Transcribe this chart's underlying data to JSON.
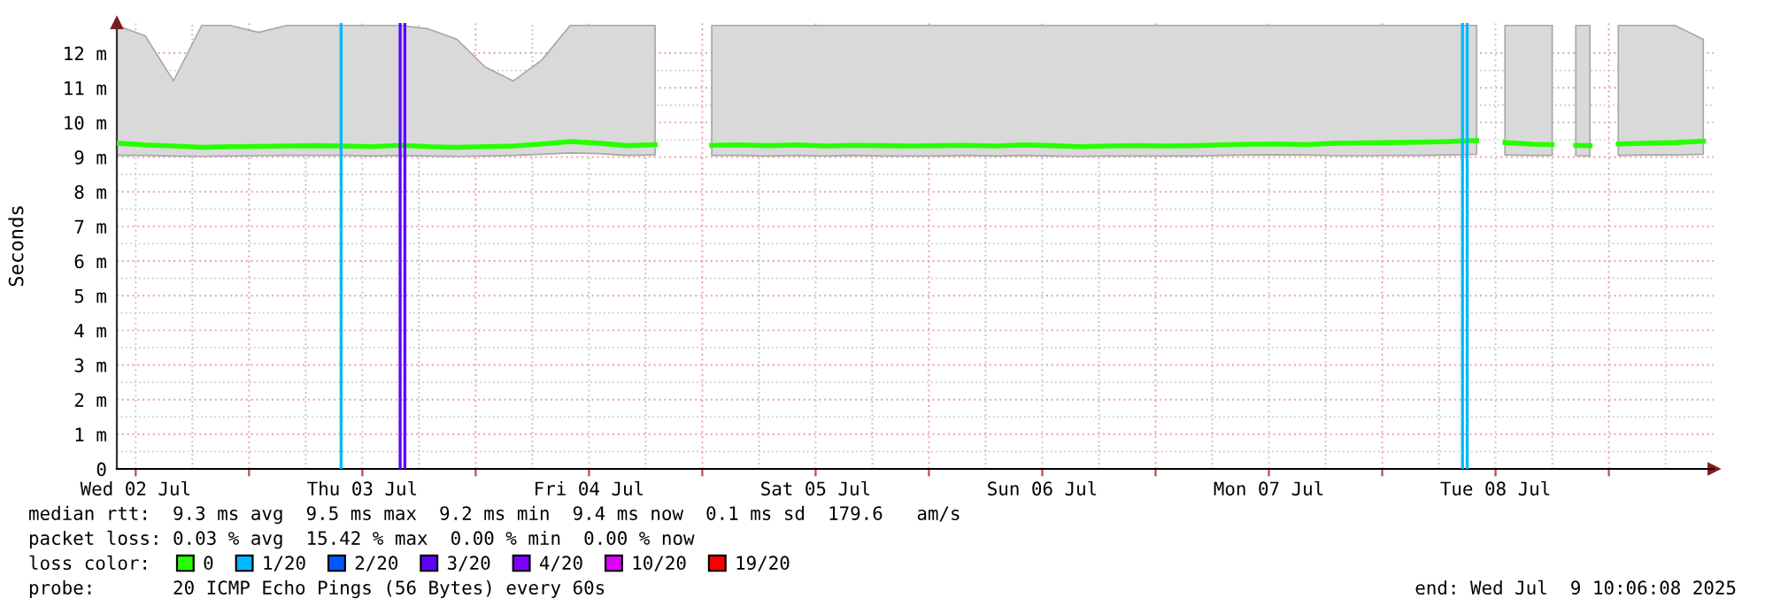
{
  "chart_data": {
    "type": "line",
    "ylabel": "Seconds",
    "legend_title": "loss color:",
    "legend": "bottom",
    "grid": true,
    "marker": "none",
    "line_style": "solid",
    "xlim": [
      "2025-07-02T10:00",
      "2025-07-09T11:06"
    ],
    "ylim": [
      0,
      12.87
    ],
    "xticks": [
      {
        "value": "2025-07-02T12:00",
        "label": "Wed 02 Jul"
      },
      {
        "value": "2025-07-03T00:00",
        "label": null
      },
      {
        "value": "2025-07-03T12:00",
        "label": "Thu 03 Jul"
      },
      {
        "value": "2025-07-04T00:00",
        "label": null
      },
      {
        "value": "2025-07-04T12:00",
        "label": "Fri 04 Jul"
      },
      {
        "value": "2025-07-05T00:00",
        "label": null
      },
      {
        "value": "2025-07-05T12:00",
        "label": "Sat 05 Jul"
      },
      {
        "value": "2025-07-06T00:00",
        "label": null
      },
      {
        "value": "2025-07-06T12:00",
        "label": "Sun 06 Jul"
      },
      {
        "value": "2025-07-07T00:00",
        "label": null
      },
      {
        "value": "2025-07-07T12:00",
        "label": "Mon 07 Jul"
      },
      {
        "value": "2025-07-08T00:00",
        "label": null
      },
      {
        "value": "2025-07-08T12:00",
        "label": "Tue 08 Jul"
      },
      {
        "value": "2025-07-09T00:00",
        "label": null
      }
    ],
    "yticks": [
      0,
      {
        "value": 1,
        "label": "1 m"
      },
      {
        "value": 2,
        "label": "2 m"
      },
      {
        "value": 3,
        "label": "3 m"
      },
      {
        "value": 4,
        "label": "4 m"
      },
      {
        "value": 5,
        "label": "5 m"
      },
      {
        "value": 6,
        "label": "6 m"
      },
      {
        "value": 7,
        "label": "7 m"
      },
      {
        "value": 8,
        "label": "8 m"
      },
      {
        "value": 9,
        "label": "9 m"
      },
      {
        "value": 10,
        "label": "10 m"
      },
      {
        "value": 11,
        "label": "11 m"
      },
      {
        "value": 12,
        "label": "12 m"
      }
    ],
    "x": [
      "2025-07-02T10:00",
      "2025-07-02T13:00",
      "2025-07-02T16:00",
      "2025-07-02T19:00",
      "2025-07-02T22:00",
      "2025-07-03T01:00",
      "2025-07-03T04:00",
      "2025-07-03T07:00",
      "2025-07-03T10:00",
      "2025-07-03T13:00",
      "2025-07-03T16:00",
      "2025-07-03T19:00",
      "2025-07-03T22:00",
      "2025-07-04T01:00",
      "2025-07-04T04:00",
      "2025-07-04T07:00",
      "2025-07-04T10:00",
      "2025-07-04T13:00",
      "2025-07-04T16:00",
      "2025-07-04T19:00",
      "2025-07-04T21:00",
      "2025-07-05T01:00",
      "2025-07-05T04:00",
      "2025-07-05T07:00",
      "2025-07-05T10:00",
      "2025-07-05T13:00",
      "2025-07-05T16:00",
      "2025-07-05T19:00",
      "2025-07-05T22:00",
      "2025-07-06T01:00",
      "2025-07-06T04:00",
      "2025-07-06T07:00",
      "2025-07-06T10:00",
      "2025-07-06T13:00",
      "2025-07-06T16:00",
      "2025-07-06T19:00",
      "2025-07-06T22:00",
      "2025-07-07T01:00",
      "2025-07-07T04:00",
      "2025-07-07T07:00",
      "2025-07-07T10:00",
      "2025-07-07T13:00",
      "2025-07-07T16:00",
      "2025-07-07T19:00",
      "2025-07-07T22:00",
      "2025-07-08T01:00",
      "2025-07-08T04:00",
      "2025-07-08T07:00",
      "2025-07-08T10:00",
      "2025-07-08T11:30",
      "2025-07-08T13:00",
      "2025-07-08T16:00",
      "2025-07-08T18:00",
      "2025-07-08T19:00",
      "2025-07-08T20:30",
      "2025-07-08T22:00",
      "2025-07-08T23:30",
      "2025-07-09T01:00",
      "2025-07-09T04:00",
      "2025-07-09T07:00",
      "2025-07-09T10:00"
    ],
    "series": [
      {
        "name": "0",
        "color": "#26ff00",
        "values": [
          9.4,
          9.35,
          9.32,
          9.28,
          9.3,
          9.31,
          9.32,
          9.33,
          9.32,
          9.3,
          9.34,
          9.3,
          9.28,
          9.3,
          9.32,
          9.38,
          9.45,
          9.4,
          9.33,
          9.36,
          null,
          9.34,
          9.35,
          9.33,
          9.35,
          9.32,
          9.34,
          9.33,
          9.32,
          9.33,
          9.34,
          9.32,
          9.35,
          9.33,
          9.3,
          9.32,
          9.33,
          9.32,
          9.33,
          9.35,
          9.37,
          9.38,
          9.36,
          9.4,
          9.41,
          9.42,
          9.43,
          9.45,
          9.48,
          null,
          9.42,
          9.37,
          9.36,
          null,
          9.34,
          9.33,
          null,
          9.38,
          9.4,
          9.42,
          9.46
        ],
        "lower": [
          9.05,
          9.05,
          9.03,
          9.02,
          9.03,
          9.04,
          9.05,
          9.05,
          9.05,
          9.03,
          9.05,
          9.03,
          9.02,
          9.03,
          9.05,
          9.08,
          9.12,
          9.1,
          9.05,
          9.06,
          null,
          9.05,
          9.05,
          9.03,
          9.05,
          9.03,
          9.05,
          9.03,
          9.03,
          9.03,
          9.05,
          9.03,
          9.05,
          9.03,
          9.02,
          9.03,
          9.03,
          9.03,
          9.03,
          9.05,
          9.06,
          9.07,
          9.06,
          9.04,
          9.04,
          9.05,
          9.05,
          9.06,
          9.08,
          null,
          9.06,
          9.05,
          9.05,
          null,
          9.04,
          9.03,
          null,
          9.05,
          9.06,
          9.06,
          9.08
        ],
        "upper": [
          12.8,
          12.5,
          11.2,
          12.8,
          12.8,
          12.6,
          12.8,
          12.8,
          12.8,
          12.8,
          12.8,
          12.7,
          12.4,
          11.6,
          11.2,
          11.8,
          12.8,
          12.8,
          12.8,
          12.8,
          null,
          12.8,
          12.8,
          12.8,
          12.8,
          12.8,
          12.8,
          12.8,
          12.8,
          12.8,
          12.8,
          12.8,
          12.8,
          12.8,
          12.8,
          12.8,
          12.8,
          12.8,
          12.8,
          12.8,
          12.8,
          12.8,
          12.8,
          12.8,
          12.8,
          12.8,
          12.8,
          12.8,
          12.8,
          null,
          12.8,
          12.8,
          12.8,
          null,
          12.8,
          12.8,
          null,
          12.8,
          12.8,
          12.8,
          12.4
        ]
      },
      {
        "name": "1/20",
        "color": "#00b8ff",
        "values": [
          null,
          null,
          null,
          null,
          null,
          null,
          null,
          null,
          null,
          null,
          null,
          null,
          null,
          null,
          null,
          null,
          null,
          null,
          null,
          null,
          null,
          null,
          null,
          null,
          null,
          null,
          null,
          null,
          null,
          null,
          null,
          null,
          null,
          null,
          null,
          null,
          null,
          null,
          null,
          null,
          null,
          null,
          null,
          null,
          null,
          null,
          null,
          null,
          null,
          null,
          null,
          null,
          null,
          null,
          null,
          null,
          null,
          null,
          null,
          null,
          null
        ]
      },
      {
        "name": "2/20",
        "color": "#0059ff",
        "values": [
          null,
          null,
          null,
          null,
          null,
          null,
          null,
          null,
          null,
          null,
          null,
          null,
          null,
          null,
          null,
          null,
          null,
          null,
          null,
          null,
          null,
          null,
          null,
          null,
          null,
          null,
          null,
          null,
          null,
          null,
          null,
          null,
          null,
          null,
          null,
          null,
          null,
          null,
          null,
          null,
          null,
          null,
          null,
          null,
          null,
          null,
          null,
          null,
          null,
          null,
          null,
          null,
          null,
          null,
          null,
          null,
          null,
          null,
          null,
          null,
          null
        ]
      },
      {
        "name": "3/20",
        "color": "#5e00ff",
        "values": [
          null,
          null,
          null,
          null,
          null,
          null,
          null,
          null,
          null,
          null,
          null,
          null,
          null,
          null,
          null,
          null,
          null,
          null,
          null,
          null,
          null,
          null,
          null,
          null,
          null,
          null,
          null,
          null,
          null,
          null,
          null,
          null,
          null,
          null,
          null,
          null,
          null,
          null,
          null,
          null,
          null,
          null,
          null,
          null,
          null,
          null,
          null,
          null,
          null,
          null,
          null,
          null,
          null,
          null,
          null,
          null,
          null,
          null,
          null,
          null,
          null
        ]
      },
      {
        "name": "4/20",
        "color": "#7e00ff",
        "values": [
          null,
          null,
          null,
          null,
          null,
          null,
          null,
          null,
          null,
          null,
          null,
          null,
          null,
          null,
          null,
          null,
          null,
          null,
          null,
          null,
          null,
          null,
          null,
          null,
          null,
          null,
          null,
          null,
          null,
          null,
          null,
          null,
          null,
          null,
          null,
          null,
          null,
          null,
          null,
          null,
          null,
          null,
          null,
          null,
          null,
          null,
          null,
          null,
          null,
          null,
          null,
          null,
          null,
          null,
          null,
          null,
          null,
          null,
          null,
          null,
          null
        ]
      },
      {
        "name": "10/20",
        "color": "#dd00ff",
        "values": [
          null,
          null,
          null,
          null,
          null,
          null,
          null,
          null,
          null,
          null,
          null,
          null,
          null,
          null,
          null,
          null,
          null,
          null,
          null,
          null,
          null,
          null,
          null,
          null,
          null,
          null,
          null,
          null,
          null,
          null,
          null,
          null,
          null,
          null,
          null,
          null,
          null,
          null,
          null,
          null,
          null,
          null,
          null,
          null,
          null,
          null,
          null,
          null,
          null,
          null,
          null,
          null,
          null,
          null,
          null,
          null,
          null,
          null,
          null,
          null,
          null
        ]
      },
      {
        "name": "19/20",
        "color": "#ff0000",
        "values": [
          null,
          null,
          null,
          null,
          null,
          null,
          null,
          null,
          null,
          null,
          null,
          null,
          null,
          null,
          null,
          null,
          null,
          null,
          null,
          null,
          null,
          null,
          null,
          null,
          null,
          null,
          null,
          null,
          null,
          null,
          null,
          null,
          null,
          null,
          null,
          null,
          null,
          null,
          null,
          null,
          null,
          null,
          null,
          null,
          null,
          null,
          null,
          null,
          null,
          null,
          null,
          null,
          null,
          null,
          null,
          null,
          null,
          null,
          null,
          null,
          null
        ]
      }
    ],
    "ref_lines": [
      {
        "axis": "x",
        "value": "2025-07-03T09:45",
        "color": "#00b8ff"
      },
      {
        "axis": "x",
        "value": "2025-07-03T16:00",
        "color": "#5e00ff"
      },
      {
        "axis": "x",
        "value": "2025-07-03T16:30",
        "color": "#5e00ff"
      },
      {
        "axis": "x",
        "value": "2025-07-08T08:30",
        "color": "#00b8ff"
      },
      {
        "axis": "x",
        "value": "2025-07-08T09:00",
        "color": "#00b8ff"
      }
    ],
    "annotations": [
      "median rtt:  9.3 ms avg  9.5 ms max  9.2 ms min  9.4 ms now  0.1 ms sd  179.6   am/s",
      "packet loss: 0.03 % avg  15.42 % max  0.00 % min  0.00 % now",
      "probe:       20 ICMP Echo Pings (56 Bytes) every 60s",
      "end: Wed Jul  9 10:06:08 2025"
    ]
  }
}
